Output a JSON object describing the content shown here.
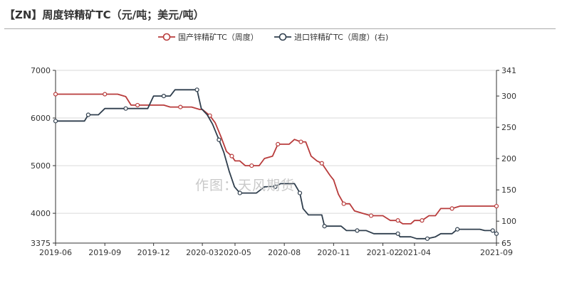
{
  "page": {
    "title": "【ZN】周度锌精矿TC（元/吨；美元/吨）",
    "watermark": "作图：天风期货"
  },
  "chart_data": {
    "type": "line",
    "title": "【ZN】周度锌精矿TC（元/吨；美元/吨）",
    "xlabel": "",
    "ylabel": "",
    "x_ticks": [
      "2019-06",
      "2019-09",
      "2019-12",
      "2020-03",
      "2020-05",
      "2020-08",
      "2020-11",
      "2021-02",
      "2021-04",
      "2021-09"
    ],
    "x_range": [
      "2019-06-01",
      "2021-09-01"
    ],
    "y_left": {
      "min": 3375,
      "max": 7000,
      "ticks": [
        3375,
        4000,
        5000,
        6000,
        7000
      ]
    },
    "y_right": {
      "min": 65,
      "max": 341,
      "ticks": [
        65,
        100,
        150,
        200,
        250,
        300,
        341
      ]
    },
    "grid": true,
    "legend_position": "top-center",
    "series": [
      {
        "name": "国产锌精矿TC（周度）",
        "axis": "left",
        "color": "#b83b3b",
        "points": [
          [
            "2019-06-01",
            6500
          ],
          [
            "2019-06-25",
            6500
          ],
          [
            "2019-07-20",
            6500
          ],
          [
            "2019-08-15",
            6500
          ],
          [
            "2019-09-01",
            6500
          ],
          [
            "2019-09-25",
            6500
          ],
          [
            "2019-10-10",
            6450
          ],
          [
            "2019-10-20",
            6270
          ],
          [
            "2019-11-01",
            6270
          ],
          [
            "2019-12-01",
            6270
          ],
          [
            "2019-12-20",
            6270
          ],
          [
            "2020-01-01",
            6230
          ],
          [
            "2020-01-20",
            6230
          ],
          [
            "2020-02-10",
            6230
          ],
          [
            "2020-02-25",
            6180
          ],
          [
            "2020-03-01",
            6180
          ],
          [
            "2020-03-15",
            6050
          ],
          [
            "2020-03-25",
            5900
          ],
          [
            "2020-04-05",
            5600
          ],
          [
            "2020-04-15",
            5300
          ],
          [
            "2020-04-25",
            5200
          ],
          [
            "2020-05-01",
            5100
          ],
          [
            "2020-05-10",
            5100
          ],
          [
            "2020-05-20",
            5000
          ],
          [
            "2020-06-01",
            5000
          ],
          [
            "2020-06-15",
            5000
          ],
          [
            "2020-06-25",
            5150
          ],
          [
            "2020-07-10",
            5200
          ],
          [
            "2020-07-20",
            5450
          ],
          [
            "2020-08-01",
            5450
          ],
          [
            "2020-08-10",
            5450
          ],
          [
            "2020-08-20",
            5550
          ],
          [
            "2020-09-01",
            5500
          ],
          [
            "2020-09-10",
            5500
          ],
          [
            "2020-09-20",
            5200
          ],
          [
            "2020-10-01",
            5100
          ],
          [
            "2020-10-10",
            5050
          ],
          [
            "2020-10-25",
            4800
          ],
          [
            "2020-11-01",
            4700
          ],
          [
            "2020-11-10",
            4400
          ],
          [
            "2020-11-20",
            4200
          ],
          [
            "2020-12-01",
            4200
          ],
          [
            "2020-12-10",
            4050
          ],
          [
            "2020-12-25",
            4000
          ],
          [
            "2021-01-10",
            3950
          ],
          [
            "2021-01-25",
            3950
          ],
          [
            "2021-02-01",
            3950
          ],
          [
            "2021-02-15",
            3850
          ],
          [
            "2021-03-01",
            3850
          ],
          [
            "2021-03-10",
            3780
          ],
          [
            "2021-03-25",
            3780
          ],
          [
            "2021-04-01",
            3850
          ],
          [
            "2021-04-15",
            3850
          ],
          [
            "2021-04-28",
            3950
          ],
          [
            "2021-05-10",
            3950
          ],
          [
            "2021-05-20",
            4100
          ],
          [
            "2021-06-10",
            4100
          ],
          [
            "2021-06-25",
            4150
          ],
          [
            "2021-07-15",
            4150
          ],
          [
            "2021-08-15",
            4150
          ],
          [
            "2021-09-01",
            4150
          ]
        ]
      },
      {
        "name": "进口锌精矿TC（周度）(右)",
        "axis": "right",
        "color": "#2f3e4d",
        "points": [
          [
            "2019-06-01",
            260
          ],
          [
            "2019-06-20",
            260
          ],
          [
            "2019-07-10",
            260
          ],
          [
            "2019-07-25",
            260
          ],
          [
            "2019-08-01",
            270
          ],
          [
            "2019-08-20",
            270
          ],
          [
            "2019-09-01",
            280
          ],
          [
            "2019-09-20",
            280
          ],
          [
            "2019-10-10",
            280
          ],
          [
            "2019-11-01",
            280
          ],
          [
            "2019-11-20",
            280
          ],
          [
            "2019-12-01",
            300
          ],
          [
            "2019-12-20",
            300
          ],
          [
            "2020-01-01",
            300
          ],
          [
            "2020-01-10",
            310
          ],
          [
            "2020-02-01",
            310
          ],
          [
            "2020-02-20",
            310
          ],
          [
            "2020-02-28",
            280
          ],
          [
            "2020-03-10",
            270
          ],
          [
            "2020-03-20",
            255
          ],
          [
            "2020-04-01",
            230
          ],
          [
            "2020-04-10",
            210
          ],
          [
            "2020-04-20",
            180
          ],
          [
            "2020-04-30",
            155
          ],
          [
            "2020-05-10",
            145
          ],
          [
            "2020-05-20",
            145
          ],
          [
            "2020-06-10",
            145
          ],
          [
            "2020-06-25",
            155
          ],
          [
            "2020-07-15",
            155
          ],
          [
            "2020-07-25",
            160
          ],
          [
            "2020-08-10",
            160
          ],
          [
            "2020-08-20",
            160
          ],
          [
            "2020-08-30",
            145
          ],
          [
            "2020-09-05",
            120
          ],
          [
            "2020-09-15",
            110
          ],
          [
            "2020-10-10",
            110
          ],
          [
            "2020-10-15",
            92
          ],
          [
            "2020-11-01",
            92
          ],
          [
            "2020-11-15",
            92
          ],
          [
            "2020-11-25",
            85
          ],
          [
            "2020-12-15",
            85
          ],
          [
            "2021-01-01",
            85
          ],
          [
            "2021-01-15",
            80
          ],
          [
            "2021-02-05",
            80
          ],
          [
            "2021-03-01",
            80
          ],
          [
            "2021-03-05",
            75
          ],
          [
            "2021-03-25",
            75
          ],
          [
            "2021-04-05",
            72
          ],
          [
            "2021-04-25",
            72
          ],
          [
            "2021-05-10",
            75
          ],
          [
            "2021-05-20",
            80
          ],
          [
            "2021-06-10",
            80
          ],
          [
            "2021-06-20",
            87
          ],
          [
            "2021-07-10",
            87
          ],
          [
            "2021-08-01",
            87
          ],
          [
            "2021-08-10",
            85
          ],
          [
            "2021-08-25",
            85
          ],
          [
            "2021-09-01",
            80
          ]
        ]
      }
    ]
  }
}
